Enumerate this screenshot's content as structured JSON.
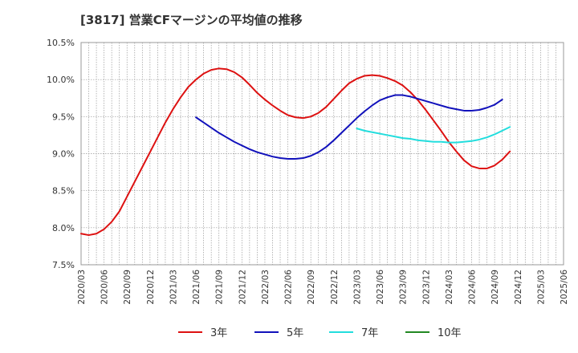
{
  "chart_data": {
    "type": "line",
    "title": "[3817]  営業CFマージンの平均値の推移",
    "xlabel": "",
    "ylabel": "",
    "ylim": [
      7.5,
      10.5
    ],
    "y_ticks": [
      "10.5%",
      "10.0%",
      "9.5%",
      "9.0%",
      "8.5%",
      "8.0%",
      "7.5%"
    ],
    "x_ticks": [
      "2020/03",
      "2020/06",
      "2020/09",
      "2020/12",
      "2021/03",
      "2021/06",
      "2021/09",
      "2021/12",
      "2022/03",
      "2022/06",
      "2022/09",
      "2022/12",
      "2023/03",
      "2023/06",
      "2023/09",
      "2023/12",
      "2024/03",
      "2024/06",
      "2024/09",
      "2024/12",
      "2025/03",
      "2025/06"
    ],
    "grid": true,
    "legend_position": "bottom",
    "series": [
      {
        "name": "3年",
        "color": "#dd1111",
        "points": [
          [
            "2020/03",
            7.92
          ],
          [
            "2020/04",
            7.9
          ],
          [
            "2020/05",
            7.92
          ],
          [
            "2020/06",
            7.98
          ],
          [
            "2020/07",
            8.08
          ],
          [
            "2020/08",
            8.22
          ],
          [
            "2020/09",
            8.42
          ],
          [
            "2020/10",
            8.62
          ],
          [
            "2020/11",
            8.82
          ],
          [
            "2020/12",
            9.02
          ],
          [
            "2021/01",
            9.22
          ],
          [
            "2021/02",
            9.42
          ],
          [
            "2021/03",
            9.6
          ],
          [
            "2021/04",
            9.76
          ],
          [
            "2021/05",
            9.9
          ],
          [
            "2021/06",
            10.0
          ],
          [
            "2021/07",
            10.08
          ],
          [
            "2021/08",
            10.13
          ],
          [
            "2021/09",
            10.15
          ],
          [
            "2021/10",
            10.14
          ],
          [
            "2021/11",
            10.1
          ],
          [
            "2021/12",
            10.03
          ],
          [
            "2022/01",
            9.93
          ],
          [
            "2022/02",
            9.82
          ],
          [
            "2022/03",
            9.73
          ],
          [
            "2022/04",
            9.65
          ],
          [
            "2022/05",
            9.58
          ],
          [
            "2022/06",
            9.52
          ],
          [
            "2022/07",
            9.49
          ],
          [
            "2022/08",
            9.48
          ],
          [
            "2022/09",
            9.5
          ],
          [
            "2022/10",
            9.55
          ],
          [
            "2022/11",
            9.63
          ],
          [
            "2022/12",
            9.74
          ],
          [
            "2023/01",
            9.85
          ],
          [
            "2023/02",
            9.95
          ],
          [
            "2023/03",
            10.01
          ],
          [
            "2023/04",
            10.05
          ],
          [
            "2023/05",
            10.06
          ],
          [
            "2023/06",
            10.05
          ],
          [
            "2023/07",
            10.02
          ],
          [
            "2023/08",
            9.98
          ],
          [
            "2023/09",
            9.92
          ],
          [
            "2023/10",
            9.83
          ],
          [
            "2023/11",
            9.72
          ],
          [
            "2023/12",
            9.59
          ],
          [
            "2024/01",
            9.45
          ],
          [
            "2024/02",
            9.31
          ],
          [
            "2024/03",
            9.16
          ],
          [
            "2024/04",
            9.03
          ],
          [
            "2024/05",
            8.91
          ],
          [
            "2024/06",
            8.83
          ],
          [
            "2024/07",
            8.8
          ],
          [
            "2024/08",
            8.8
          ],
          [
            "2024/09",
            8.84
          ],
          [
            "2024/10",
            8.92
          ],
          [
            "2024/11",
            9.03
          ]
        ]
      },
      {
        "name": "5年",
        "color": "#1111bb",
        "points": [
          [
            "2021/06",
            9.49
          ],
          [
            "2021/07",
            9.42
          ],
          [
            "2021/08",
            9.35
          ],
          [
            "2021/09",
            9.28
          ],
          [
            "2021/10",
            9.22
          ],
          [
            "2021/11",
            9.16
          ],
          [
            "2021/12",
            9.11
          ],
          [
            "2022/01",
            9.06
          ],
          [
            "2022/02",
            9.02
          ],
          [
            "2022/03",
            8.99
          ],
          [
            "2022/04",
            8.96
          ],
          [
            "2022/05",
            8.94
          ],
          [
            "2022/06",
            8.93
          ],
          [
            "2022/07",
            8.93
          ],
          [
            "2022/08",
            8.94
          ],
          [
            "2022/09",
            8.97
          ],
          [
            "2022/10",
            9.02
          ],
          [
            "2022/11",
            9.09
          ],
          [
            "2022/12",
            9.18
          ],
          [
            "2023/01",
            9.28
          ],
          [
            "2023/02",
            9.38
          ],
          [
            "2023/03",
            9.48
          ],
          [
            "2023/04",
            9.57
          ],
          [
            "2023/05",
            9.65
          ],
          [
            "2023/06",
            9.72
          ],
          [
            "2023/07",
            9.76
          ],
          [
            "2023/08",
            9.79
          ],
          [
            "2023/09",
            9.79
          ],
          [
            "2023/10",
            9.77
          ],
          [
            "2023/11",
            9.74
          ],
          [
            "2023/12",
            9.71
          ],
          [
            "2024/01",
            9.68
          ],
          [
            "2024/02",
            9.65
          ],
          [
            "2024/03",
            9.62
          ],
          [
            "2024/04",
            9.6
          ],
          [
            "2024/05",
            9.58
          ],
          [
            "2024/06",
            9.58
          ],
          [
            "2024/07",
            9.59
          ],
          [
            "2024/08",
            9.62
          ],
          [
            "2024/09",
            9.66
          ],
          [
            "2024/10",
            9.73
          ]
        ]
      },
      {
        "name": "7年",
        "color": "#22dddd",
        "points": [
          [
            "2023/03",
            9.34
          ],
          [
            "2023/04",
            9.31
          ],
          [
            "2023/05",
            9.29
          ],
          [
            "2023/06",
            9.27
          ],
          [
            "2023/07",
            9.25
          ],
          [
            "2023/08",
            9.23
          ],
          [
            "2023/09",
            9.21
          ],
          [
            "2023/10",
            9.2
          ],
          [
            "2023/11",
            9.18
          ],
          [
            "2023/12",
            9.17
          ],
          [
            "2024/01",
            9.16
          ],
          [
            "2024/02",
            9.16
          ],
          [
            "2024/03",
            9.15
          ],
          [
            "2024/04",
            9.15
          ],
          [
            "2024/05",
            9.16
          ],
          [
            "2024/06",
            9.17
          ],
          [
            "2024/07",
            9.19
          ],
          [
            "2024/08",
            9.22
          ],
          [
            "2024/09",
            9.26
          ],
          [
            "2024/10",
            9.31
          ],
          [
            "2024/11",
            9.36
          ]
        ]
      },
      {
        "name": "10年",
        "color": "#228822",
        "points": []
      }
    ]
  }
}
